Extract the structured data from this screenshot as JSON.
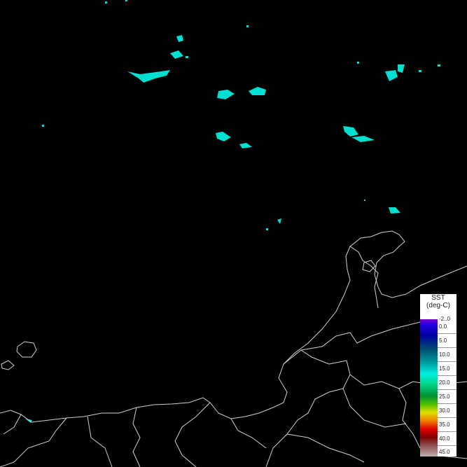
{
  "map": {
    "background": "#000000",
    "coastline_color": "#d0d0d0",
    "sst_patch_color": "#00e0d0"
  },
  "legend": {
    "title": "SST",
    "unit": "(deg-C)",
    "labels": [
      "-2..0",
      "0.0",
      "5.0",
      "10.0",
      "15.0",
      "20.0",
      "25.0",
      "30.0",
      "35.0",
      "40.0",
      "45.0"
    ]
  }
}
